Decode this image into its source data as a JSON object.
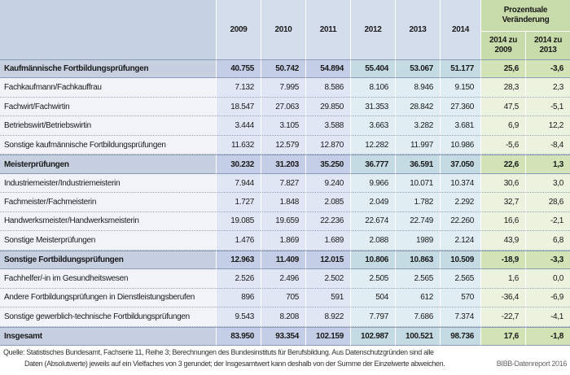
{
  "header": {
    "columns": [
      "2009",
      "2010",
      "2011",
      "2012",
      "2013",
      "2014"
    ],
    "change_title": "Prozentuale Veränderung",
    "change_columns": [
      "2014 zu 2009",
      "2014 zu 2013"
    ]
  },
  "table": {
    "rows": [
      {
        "label": "Kaufmännische Fortbildungsprüfungen",
        "group": true,
        "cells": [
          "40.755",
          "50.742",
          "54.894",
          "55.404",
          "53.067",
          "51.177",
          "25,6",
          "-3,6"
        ]
      },
      {
        "label": "Fachkaufmann/Fachkauffrau",
        "group": false,
        "cells": [
          "7.132",
          "7.995",
          "8.586",
          "8.106",
          "8.946",
          "9.150",
          "28,3",
          "2,3"
        ]
      },
      {
        "label": "Fachwirt/Fachwirtin",
        "group": false,
        "cells": [
          "18.547",
          "27.063",
          "29.850",
          "31.353",
          "28.842",
          "27.360",
          "47,5",
          "-5,1"
        ]
      },
      {
        "label": "Betriebswirt/Betriebswirtin",
        "group": false,
        "cells": [
          "3.444",
          "3.105",
          "3.588",
          "3.663",
          "3.282",
          "3.681",
          "6,9",
          "12,2"
        ]
      },
      {
        "label": "Sonstige kaufmännische Fortbildungsprüfungen",
        "group": false,
        "cells": [
          "11.632",
          "12.579",
          "12.870",
          "12.282",
          "11.997",
          "10.986",
          "-5,6",
          "-8,4"
        ]
      },
      {
        "label": "Meisterprüfungen",
        "group": true,
        "cells": [
          "30.232",
          "31.203",
          "35.250",
          "36.777",
          "36.591",
          "37.050",
          "22,6",
          "1,3"
        ]
      },
      {
        "label": "Industriemeister/Industriemeisterin",
        "group": false,
        "cells": [
          "7.944",
          "7.827",
          "9.240",
          "9.966",
          "10.071",
          "10.374",
          "30,6",
          "3,0"
        ]
      },
      {
        "label": "Fachmeister/Fachmeisterin",
        "group": false,
        "cells": [
          "1.727",
          "1.848",
          "2.085",
          "2.049",
          "1.782",
          "2.292",
          "32,7",
          "28,6"
        ]
      },
      {
        "label": "Handwerksmeister/Handwerksmeisterin",
        "group": false,
        "cells": [
          "19.085",
          "19.659",
          "22.236",
          "22.674",
          "22.749",
          "22.260",
          "16,6",
          "-2,1"
        ]
      },
      {
        "label": "Sonstige Meisterprüfungen",
        "group": false,
        "cells": [
          "1.476",
          "1.869",
          "1.689",
          "2.088",
          "1989",
          "2.124",
          "43,9",
          "6,8"
        ]
      },
      {
        "label": "Sonstige Fortbildungsprüfungen",
        "group": true,
        "cells": [
          "12.963",
          "11.409",
          "12.015",
          "10.806",
          "10.863",
          "10.509",
          "-18,9",
          "-3,3"
        ]
      },
      {
        "label": "Fachhelfer/-in im Gesundheitswesen",
        "group": false,
        "cells": [
          "2.526",
          "2.496",
          "2.502",
          "2.505",
          "2.565",
          "2.565",
          "1,6",
          "0,0"
        ]
      },
      {
        "label": "Andere Fortbildungsprüfungen in Dienstleistungsberufen",
        "group": false,
        "cells": [
          "896",
          "705",
          "591",
          "504",
          "612",
          "570",
          "-36,4",
          "-6,9"
        ]
      },
      {
        "label": "Sonstige gewerblich-technische Fortbildungsprüfungen",
        "group": false,
        "cells": [
          "9.543",
          "8.208",
          "8.922",
          "7.797",
          "7.686",
          "7.374",
          "-22,7",
          "-4,1"
        ]
      },
      {
        "label": "Insgesamt",
        "group": true,
        "cells": [
          "83.950",
          "93.354",
          "102.159",
          "102.987",
          "100.521",
          "98.736",
          "17,6",
          "-1,8"
        ]
      }
    ]
  },
  "footer": {
    "source": [
      "Quelle: Statistisches Bundesamt, Fachserie 11, Reihe 3; Berechnungen des Bundesinstituts für Berufsbildung. Aus Datenschutzgründen sind alle",
      "Daten (Absolutwerte) jeweils auf ein Vielfaches von 3 gerundet; der Insgesamtwert kann deshalb von der Summe der Einzelwerte abweichen."
    ],
    "brand": "BIBB-Datenreport 2016"
  }
}
